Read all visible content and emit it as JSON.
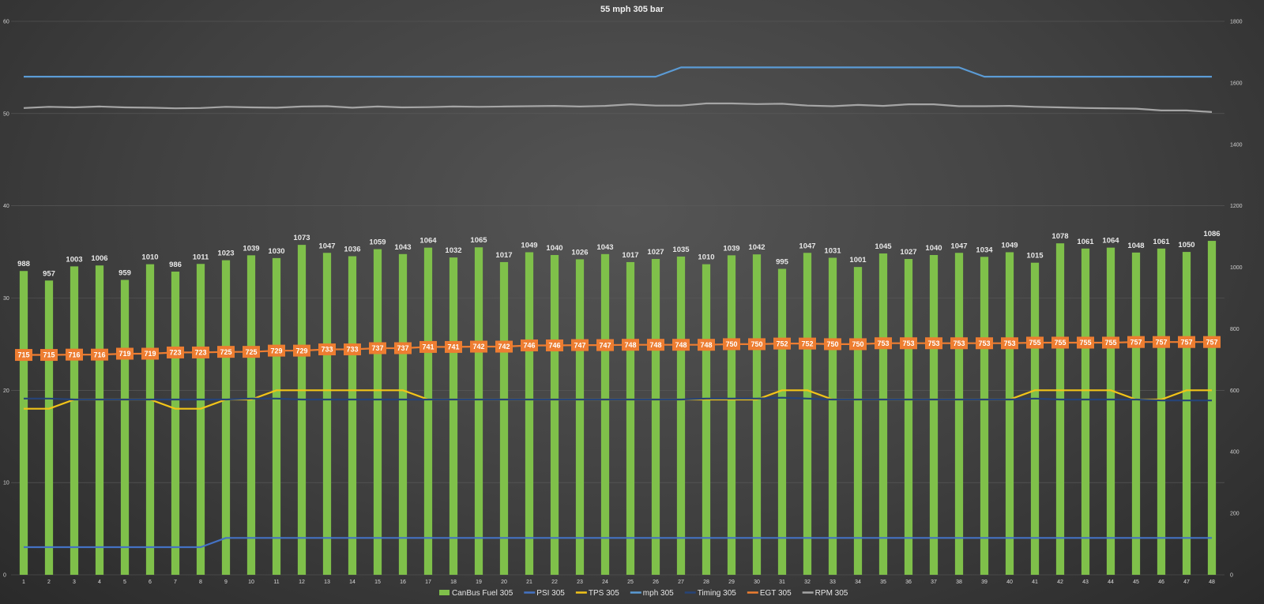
{
  "chart_data": {
    "type": "bar",
    "title": "55 mph 305 bar",
    "xlabel": "",
    "ylabel": "",
    "grid": true,
    "legend_position": "bottom",
    "categories": [
      "1",
      "2",
      "3",
      "4",
      "5",
      "6",
      "7",
      "8",
      "9",
      "10",
      "11",
      "12",
      "13",
      "14",
      "15",
      "16",
      "17",
      "18",
      "19",
      "20",
      "21",
      "22",
      "23",
      "24",
      "25",
      "26",
      "27",
      "28",
      "29",
      "30",
      "31",
      "32",
      "33",
      "34",
      "35",
      "36",
      "37",
      "38",
      "39",
      "40",
      "41",
      "42",
      "43",
      "44",
      "45",
      "46",
      "47",
      "48"
    ],
    "y_left": {
      "min": 0,
      "max": 60,
      "ticks": [
        "0",
        "10",
        "20",
        "30",
        "40",
        "50",
        "60"
      ]
    },
    "y_right": {
      "min": 0,
      "max": 1800,
      "ticks": [
        "0",
        "200",
        "400",
        "600",
        "800",
        "1000",
        "1200",
        "1400",
        "1600",
        "1800"
      ]
    },
    "series": [
      {
        "name": "CanBus Fuel 305",
        "type": "bar",
        "axis": "right",
        "color": "#7fc04a",
        "labels": true,
        "values": [
          988,
          957,
          1003,
          1006,
          959,
          1010,
          986,
          1011,
          1023,
          1039,
          1030,
          1073,
          1047,
          1036,
          1059,
          1043,
          1064,
          1032,
          1065,
          1017,
          1049,
          1040,
          1026,
          1043,
          1017,
          1027,
          1035,
          1010,
          1039,
          1042,
          995,
          1047,
          1031,
          1001,
          1045,
          1027,
          1040,
          1047,
          1034,
          1049,
          1015,
          1078,
          1061,
          1064,
          1048,
          1061,
          1050,
          1086
        ]
      },
      {
        "name": "PSI 305",
        "type": "line",
        "axis": "left",
        "color": "#4472c4",
        "values": [
          3,
          3,
          3,
          3,
          3,
          3,
          3,
          3,
          4,
          4,
          4,
          4,
          4,
          4,
          4,
          4,
          4,
          4,
          4,
          4,
          4,
          4,
          4,
          4,
          4,
          4,
          4,
          4,
          4,
          4,
          4,
          4,
          4,
          4,
          4,
          4,
          4,
          4,
          4,
          4,
          4,
          4,
          4,
          4,
          4,
          4,
          4,
          4
        ]
      },
      {
        "name": "TPS 305",
        "type": "line",
        "axis": "left",
        "color": "#f2c418",
        "values": [
          18,
          18,
          19,
          19,
          19,
          19,
          18,
          18,
          19,
          19,
          20,
          20,
          20,
          20,
          20,
          20,
          19,
          19,
          19,
          19,
          19,
          19,
          19,
          19,
          19,
          19,
          19,
          19,
          19,
          19,
          20,
          20,
          19,
          19,
          19,
          19,
          19,
          19,
          19,
          19,
          20,
          20,
          20,
          20,
          19,
          19,
          20,
          20
        ]
      },
      {
        "name": "mph 305",
        "type": "line",
        "axis": "left",
        "color": "#5b9bd5",
        "values": [
          54,
          54,
          54,
          54,
          54,
          54,
          54,
          54,
          54,
          54,
          54,
          54,
          54,
          54,
          54,
          54,
          54,
          54,
          54,
          54,
          54,
          54,
          54,
          54,
          54,
          54,
          55,
          55,
          55,
          55,
          55,
          55,
          55,
          55,
          55,
          55,
          55,
          55,
          54,
          54,
          54,
          54,
          54,
          54,
          54,
          54,
          54,
          54
        ]
      },
      {
        "name": "Timing 305",
        "type": "line",
        "axis": "left",
        "color": "#264478",
        "values": [
          19.1,
          19.1,
          19.0,
          19.0,
          19.0,
          19.0,
          19.0,
          19.0,
          19.0,
          19.1,
          19.1,
          19.0,
          19.0,
          19.0,
          19.0,
          19.0,
          19.0,
          19.0,
          19.0,
          19.0,
          19.0,
          19.0,
          19.0,
          19.0,
          19.0,
          19.0,
          19.0,
          19.1,
          19.1,
          19.1,
          19.2,
          19.1,
          19.0,
          19.0,
          19.0,
          19.0,
          19.0,
          19.0,
          19.0,
          19.0,
          19.1,
          19.0,
          19.0,
          19.0,
          19.0,
          18.9,
          18.9,
          18.9
        ]
      },
      {
        "name": "EGT 305",
        "type": "line",
        "axis": "right",
        "color": "#ed7d31",
        "labels": true,
        "values": [
          715,
          715,
          716,
          716,
          719,
          719,
          723,
          723,
          725,
          725,
          729,
          729,
          733,
          733,
          737,
          737,
          741,
          741,
          742,
          742,
          746,
          746,
          747,
          747,
          748,
          748,
          748,
          748,
          750,
          750,
          752,
          752,
          750,
          750,
          753,
          753,
          753,
          753,
          753,
          753,
          755,
          755,
          755,
          755,
          757,
          757,
          757,
          757
        ]
      },
      {
        "name": "RPM 305",
        "type": "line",
        "axis": "right",
        "color": "#a5a5a5",
        "values": [
          1518,
          1522,
          1520,
          1523,
          1520,
          1519,
          1517,
          1518,
          1522,
          1520,
          1519,
          1523,
          1524,
          1519,
          1523,
          1520,
          1521,
          1523,
          1522,
          1523,
          1524,
          1525,
          1523,
          1525,
          1530,
          1526,
          1526,
          1533,
          1533,
          1531,
          1532,
          1526,
          1524,
          1528,
          1525,
          1530,
          1530,
          1524,
          1524,
          1525,
          1522,
          1520,
          1518,
          1517,
          1516,
          1510,
          1510,
          1505
        ]
      }
    ]
  }
}
